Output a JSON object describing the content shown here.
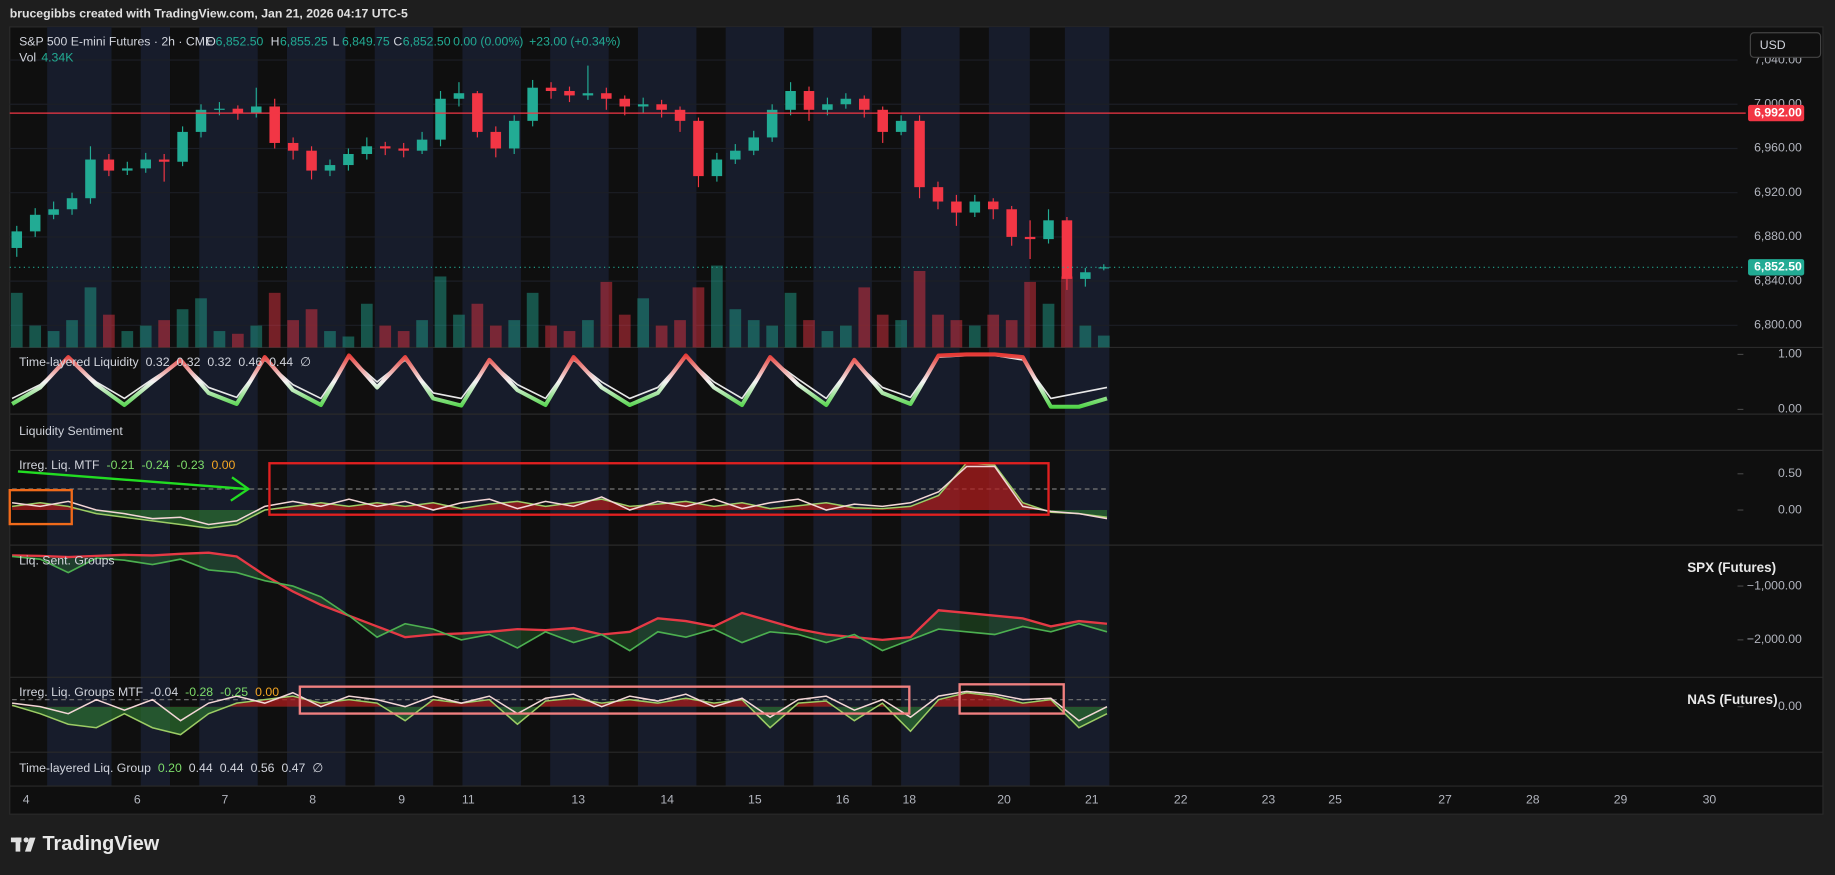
{
  "header": {
    "credit": "brucegibbs created with TradingView.com, Jan 21, 2026 04:17 UTC-5",
    "symbol": "S&P 500 E-mini Futures · 2h · CME",
    "ohlc": [
      {
        "key": "O",
        "value": "6,852.50"
      },
      {
        "key": "H",
        "value": "6,855.25"
      },
      {
        "key": "L",
        "value": "6,849.75"
      },
      {
        "key": "C",
        "value": "6,852.50"
      }
    ],
    "change": "0.00 (0.00%)",
    "day_change": "+23.00 (+0.34%)",
    "vol_label": "Vol",
    "vol_value": "4.34K",
    "currency": "USD"
  },
  "legends": [
    {
      "title": "Time-layered Liquidity",
      "values": [
        "0.32",
        "0.32",
        "0.32",
        "0.46",
        "0.44",
        "∅"
      ],
      "colors": [
        "#d1d4dc",
        "#d1d4dc",
        "#d1d4dc",
        "#d1d4dc",
        "#d1d4dc",
        "#d1d4dc"
      ]
    },
    {
      "title": "Liquidity Sentiment",
      "values": [],
      "colors": []
    },
    {
      "title": "Irreg. Liq. MTF",
      "values": [
        "-0.21",
        "-0.24",
        "-0.23",
        "0.00"
      ],
      "colors": [
        "#7ddc6a",
        "#7ddc6a",
        "#7ddc6a",
        "#f5a623"
      ]
    },
    {
      "title": "Liq. Sent. Groups",
      "values": [],
      "colors": []
    },
    {
      "title": "Irreg. Liq. Groups MTF",
      "values": [
        "-0.04",
        "-0.28",
        "-0.25",
        "0.00"
      ],
      "colors": [
        "#d1d4dc",
        "#7ddc6a",
        "#7ddc6a",
        "#f5a623"
      ]
    },
    {
      "title": "Time-layered Liq. Group",
      "values": [
        "0.20",
        "0.44",
        "0.44",
        "0.56",
        "0.47",
        "∅"
      ],
      "colors": [
        "#7ddc6a",
        "#d1d4dc",
        "#d1d4dc",
        "#d1d4dc",
        "#d1d4dc",
        "#d1d4dc"
      ]
    }
  ],
  "pane_labels": [
    "SPX (Futures)",
    "NAS (Futures)"
  ],
  "time_axis": [
    "4",
    "6",
    "7",
    "8",
    "9",
    "11",
    "13",
    "14",
    "15",
    "16",
    "18",
    "20",
    "21",
    "22",
    "23",
    "25",
    "27",
    "28",
    "29",
    "30"
  ],
  "chart_data": [
    {
      "type": "candlestick",
      "up_color": "#22ab94",
      "down_color": "#f23645",
      "open": [
        6870,
        6885,
        6900,
        6905,
        6915,
        6950,
        6940,
        6942,
        6950,
        6948,
        6975,
        6995,
        6996,
        6992,
        6998,
        6965,
        6958,
        6940,
        6945,
        6955,
        6962,
        6960,
        6958,
        6968,
        7005,
        7010,
        6975,
        6960,
        6985,
        7015,
        7012,
        7008,
        7010,
        7005,
        6998,
        7000,
        6995,
        6985,
        6935,
        6950,
        6958,
        6970,
        6995,
        7012,
        6995,
        7000,
        7005,
        6995,
        6975,
        6985,
        6925,
        6912,
        6902,
        6912,
        6905,
        6880,
        6878,
        6895,
        6842,
        6852.5
      ],
      "high": [
        6890,
        6906,
        6912,
        6920,
        6962,
        6955,
        6948,
        6956,
        6955,
        6980,
        7000,
        7002,
        6999,
        7015,
        7005,
        6970,
        6962,
        6950,
        6960,
        6970,
        6966,
        6965,
        6975,
        7012,
        7020,
        7012,
        6980,
        6990,
        7022,
        7020,
        7016,
        7035,
        7015,
        7008,
        7006,
        7004,
        6998,
        6988,
        6956,
        6964,
        6976,
        7000,
        7020,
        7016,
        7006,
        7010,
        7008,
        6998,
        6990,
        6990,
        6930,
        6918,
        6918,
        6915,
        6908,
        6895,
        6905,
        6898,
        6852,
        6855.25
      ],
      "low": [
        6862,
        6880,
        6896,
        6900,
        6910,
        6935,
        6936,
        6938,
        6930,
        6944,
        6970,
        6990,
        6986,
        6988,
        6960,
        6950,
        6932,
        6935,
        6940,
        6950,
        6954,
        6952,
        6955,
        6962,
        6998,
        6970,
        6952,
        6955,
        6980,
        7005,
        7002,
        7004,
        6995,
        6990,
        6992,
        6988,
        6975,
        6925,
        6930,
        6946,
        6954,
        6966,
        6990,
        6985,
        6990,
        6996,
        6988,
        6965,
        6972,
        6915,
        6905,
        6890,
        6898,
        6896,
        6872,
        6860,
        6874,
        6832,
        6835,
        6849.75
      ],
      "close": [
        6885,
        6900,
        6905,
        6915,
        6950,
        6940,
        6942,
        6950,
        6948,
        6975,
        6995,
        6996,
        6992,
        6998,
        6965,
        6958,
        6940,
        6945,
        6955,
        6962,
        6960,
        6958,
        6968,
        7005,
        7010,
        6975,
        6960,
        6985,
        7015,
        7012,
        7008,
        7010,
        7005,
        6998,
        7000,
        6995,
        6985,
        6935,
        6950,
        6958,
        6970,
        6995,
        7012,
        6995,
        7000,
        7005,
        6995,
        6975,
        6985,
        6925,
        6912,
        6902,
        6912,
        6905,
        6880,
        6878,
        6895,
        6842,
        6848,
        6852.5
      ],
      "volume": [
        20,
        8,
        6,
        10,
        22,
        12,
        6,
        8,
        10,
        14,
        18,
        6,
        5,
        8,
        20,
        10,
        14,
        6,
        4,
        16,
        8,
        6,
        10,
        26,
        12,
        16,
        8,
        10,
        20,
        8,
        6,
        10,
        24,
        12,
        18,
        8,
        10,
        22,
        30,
        14,
        10,
        8,
        20,
        10,
        6,
        8,
        22,
        12,
        10,
        28,
        12,
        10,
        8,
        12,
        10,
        24,
        16,
        26,
        8,
        4.34
      ],
      "ylim": [
        6780,
        7070
      ],
      "yticks": [
        {
          "value": 7040,
          "label": "7,040.00"
        },
        {
          "value": 7000,
          "label": "7,000.00"
        },
        {
          "value": 6960,
          "label": "6,960.00"
        },
        {
          "value": 6920,
          "label": "6,920.00"
        },
        {
          "value": 6880,
          "label": "6,880.00"
        },
        {
          "value": 6840,
          "label": "6,840.00"
        },
        {
          "value": 6800,
          "label": "6,800.00"
        }
      ],
      "grid": true,
      "hline": {
        "value": 6992,
        "label": "6,992.00",
        "color": "#f23645"
      },
      "last_price_label": "6,852.50"
    },
    {
      "type": "line",
      "ylim": [
        -0.085,
        1.106
      ],
      "yticks": [
        {
          "value": 1,
          "label": "1.00"
        },
        {
          "value": 0,
          "label": "0.00"
        }
      ],
      "series": [
        {
          "color": "#e8e8e8",
          "values": [
            0.2,
            0.45,
            0.92,
            0.5,
            0.2,
            0.55,
            0.88,
            0.4,
            0.22,
            0.9,
            0.45,
            0.2,
            0.95,
            0.5,
            0.9,
            0.3,
            0.2,
            0.88,
            0.45,
            0.2,
            0.9,
            0.5,
            0.2,
            0.4,
            0.95,
            0.5,
            0.2,
            0.92,
            0.55,
            0.2,
            0.88,
            0.4,
            0.22,
            0.95,
            0.98,
            0.98,
            0.9,
            0.2,
            0.3,
            0.4
          ]
        },
        {
          "gradient": [
            "#e53935",
            "#f5f5f5",
            "#43d13a"
          ],
          "width": 3.5,
          "values": [
            0.1,
            0.4,
            0.95,
            0.45,
            0.08,
            0.5,
            0.9,
            0.3,
            0.1,
            0.95,
            0.35,
            0.08,
            0.98,
            0.4,
            0.95,
            0.2,
            0.07,
            0.9,
            0.35,
            0.08,
            0.95,
            0.4,
            0.08,
            0.3,
            0.98,
            0.4,
            0.08,
            0.95,
            0.45,
            0.08,
            0.9,
            0.3,
            0.1,
            0.98,
            1.0,
            1.0,
            0.95,
            0.05,
            0.05,
            0.2
          ]
        }
      ]
    },
    {
      "type": "area",
      "ylim": [
        -0.484,
        0.823
      ],
      "yticks": [
        {
          "value": 0.5,
          "label": "0.50"
        },
        {
          "value": 0,
          "label": "0.00"
        }
      ],
      "levels": [
        0.29
      ],
      "series": [
        {
          "fill": true,
          "pos_color": "#b71c1c",
          "neg_color": "#2e7d32",
          "color": "#9ccc65",
          "values": [
            0.05,
            0.1,
            0.05,
            -0.05,
            -0.1,
            -0.15,
            -0.2,
            -0.25,
            -0.2,
            0.0,
            0.05,
            0.1,
            0.05,
            0.1,
            0.05,
            0.1,
            0.02,
            0.08,
            0.12,
            0.05,
            0.1,
            0.15,
            0.05,
            0.08,
            0.12,
            0.05,
            0.1,
            0.02,
            0.06,
            0.1,
            0.03,
            0.02,
            0.05,
            0.2,
            0.65,
            0.62,
            0.1,
            -0.03,
            -0.05,
            -0.1
          ]
        },
        {
          "color": "#f3d6d6",
          "values": [
            0.1,
            0.05,
            0.12,
            0.0,
            -0.05,
            -0.12,
            -0.1,
            -0.2,
            -0.15,
            0.05,
            0.12,
            0.05,
            0.15,
            0.05,
            0.12,
            0.0,
            0.1,
            0.15,
            0.02,
            0.12,
            0.05,
            0.18,
            0.0,
            0.12,
            0.05,
            0.15,
            0.02,
            0.1,
            0.15,
            0.0,
            0.08,
            0.05,
            0.1,
            0.25,
            0.6,
            0.6,
            0.05,
            -0.02,
            -0.05,
            -0.12
          ]
        }
      ]
    },
    {
      "type": "band",
      "ylim": [
        -2696,
        -239
      ],
      "yticks": [
        {
          "value": -1000,
          "label": "−1,000.00"
        },
        {
          "value": -2000,
          "label": "−2,000.00"
        }
      ],
      "fill_color": "#2e7d32",
      "series": [
        {
          "color": "#e53945",
          "values": [
            -430,
            -440,
            -460,
            -440,
            -420,
            -430,
            -400,
            -380,
            -450,
            -800,
            -1100,
            -1350,
            -1550,
            -1750,
            -1950,
            -1900,
            -1880,
            -1850,
            -1800,
            -1820,
            -1780,
            -1900,
            -1850,
            -1600,
            -1650,
            -1750,
            -1500,
            -1650,
            -1800,
            -1900,
            -1950,
            -2000,
            -1950,
            -1450,
            -1500,
            -1550,
            -1600,
            -1750,
            -1650,
            -1700
          ]
        },
        {
          "color": "#4caf50",
          "values": [
            -450,
            -500,
            -750,
            -480,
            -520,
            -600,
            -500,
            -700,
            -750,
            -900,
            -1000,
            -1200,
            -1550,
            -1950,
            -1700,
            -1800,
            -2000,
            -1900,
            -2150,
            -1850,
            -2050,
            -1900,
            -2200,
            -1850,
            -1950,
            -1800,
            -2050,
            -1850,
            -1900,
            -2050,
            -1900,
            -2200,
            -2000,
            -1800,
            -1850,
            -1900,
            -1750,
            -1850,
            -1700,
            -1850
          ]
        }
      ]
    },
    {
      "type": "area",
      "ylim": [
        -0.65,
        0.42
      ],
      "yticks": [
        {
          "value": 0,
          "label": "0.00"
        }
      ],
      "levels": [
        0.1
      ],
      "series": [
        {
          "fill": true,
          "pos_color": "#b71c1c",
          "neg_color": "#2e7d32",
          "color": "#9ccc65",
          "values": [
            0.02,
            -0.1,
            -0.25,
            -0.3,
            -0.1,
            -0.3,
            -0.4,
            -0.1,
            0.05,
            0.1,
            0.15,
            0.05,
            0.1,
            0.05,
            -0.2,
            0.1,
            0.05,
            0.1,
            -0.25,
            0.08,
            0.12,
            0.05,
            0.1,
            0.05,
            0.12,
            0.05,
            0.1,
            -0.3,
            0.05,
            0.08,
            -0.2,
            0.05,
            -0.35,
            0.1,
            0.2,
            0.15,
            0.05,
            0.1,
            -0.3,
            -0.1
          ]
        },
        {
          "color": "#f3d6d6",
          "values": [
            0.05,
            0.0,
            -0.1,
            0.1,
            -0.05,
            0.1,
            -0.2,
            0.05,
            0.15,
            0.05,
            0.2,
            0.0,
            0.15,
            0.1,
            0.0,
            0.15,
            0.05,
            0.15,
            -0.1,
            0.12,
            0.18,
            0.0,
            0.15,
            0.08,
            0.18,
            0.0,
            0.12,
            -0.15,
            0.1,
            0.15,
            -0.05,
            0.1,
            -0.15,
            0.15,
            0.22,
            0.18,
            0.1,
            0.12,
            -0.2,
            0.0
          ]
        }
      ]
    }
  ]
}
